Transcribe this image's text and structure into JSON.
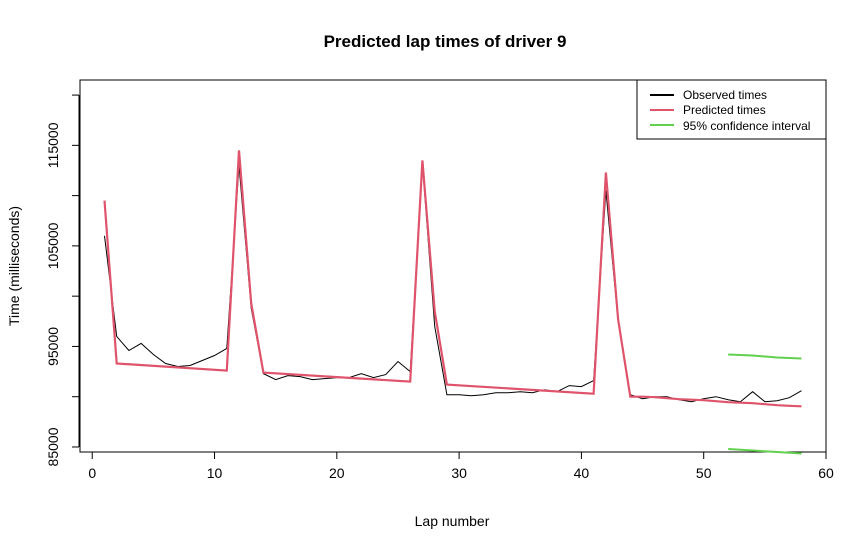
{
  "chart_data": {
    "type": "line",
    "title": "Predicted lap times of driver 9",
    "xlabel": "Lap number",
    "ylabel": "Time (milliseconds)",
    "xlim": [
      -1,
      60
    ],
    "ylim": [
      84500,
      121500
    ],
    "x_ticks": [
      0,
      10,
      20,
      30,
      40,
      50,
      60
    ],
    "y_ticks": [
      85000,
      95000,
      105000,
      115000
    ],
    "y_tick_labels": [
      "85000",
      "95000",
      "105000",
      "115000"
    ],
    "legend_position": "top-right",
    "series": [
      {
        "name": "Observed times",
        "color": "#000000",
        "x": [
          1,
          2,
          3,
          4,
          5,
          6,
          7,
          8,
          9,
          10,
          11,
          12,
          13,
          14,
          15,
          16,
          17,
          18,
          19,
          20,
          21,
          22,
          23,
          24,
          25,
          26,
          27,
          28,
          29,
          30,
          31,
          32,
          33,
          34,
          35,
          36,
          37,
          38,
          39,
          40,
          41,
          42,
          43,
          44,
          45,
          46,
          47,
          48,
          49,
          50,
          51,
          52,
          53,
          54,
          55,
          56,
          57,
          58
        ],
        "y": [
          106000,
          96000,
          94600,
          95300,
          94200,
          93300,
          93000,
          93100,
          93600,
          94100,
          94800,
          113000,
          98800,
          92300,
          91700,
          92100,
          92000,
          91700,
          91800,
          91900,
          91900,
          92300,
          91900,
          92200,
          93500,
          92500,
          113200,
          97000,
          90200,
          90200,
          90100,
          90200,
          90400,
          90400,
          90500,
          90400,
          90700,
          90500,
          91100,
          91000,
          91600,
          110500,
          97500,
          90200,
          89800,
          90000,
          90000,
          89700,
          89500,
          89800,
          90000,
          89700,
          89500,
          90500,
          89500,
          89600,
          89900,
          90600
        ]
      },
      {
        "name": "Predicted times",
        "color": "#DF536B",
        "x": [
          1,
          2,
          11,
          12,
          13,
          14,
          26,
          27,
          28,
          29,
          41,
          42,
          43,
          44,
          45,
          46,
          47,
          48,
          49,
          50,
          51,
          52,
          53,
          54,
          55,
          56,
          57,
          58
        ],
        "y": [
          109500,
          93300,
          92600,
          114500,
          99300,
          92400,
          91500,
          113500,
          98500,
          91200,
          90300,
          112300,
          97700,
          90000,
          90000,
          89950,
          89850,
          89750,
          89700,
          89650,
          89550,
          89450,
          89400,
          89350,
          89250,
          89150,
          89100,
          89050
        ]
      },
      {
        "name": "95% confidence interval",
        "color": "#61D04F",
        "upper": {
          "x": [
            52,
            54,
            56,
            58
          ],
          "y": [
            94200,
            94100,
            93900,
            93800
          ]
        },
        "lower": {
          "x": [
            52,
            54,
            56,
            58
          ],
          "y": [
            84800,
            84650,
            84500,
            84350
          ]
        }
      }
    ]
  }
}
